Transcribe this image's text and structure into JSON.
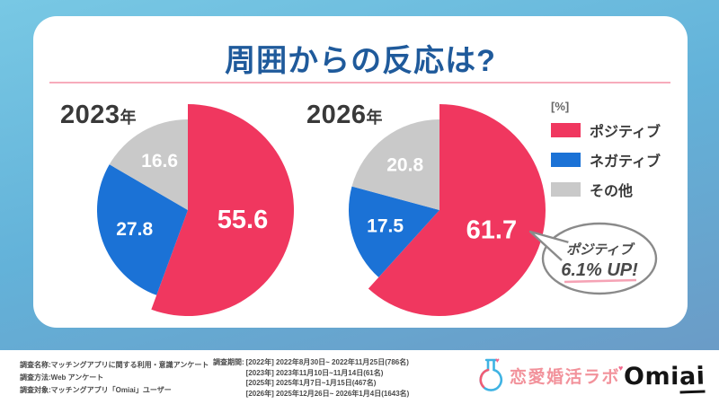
{
  "title": "周囲からの反応は?",
  "colors": {
    "positive": "#F0375F",
    "negative": "#1B72D6",
    "other": "#C9C9C9",
    "title_blue": "#1F5A9B",
    "divider_pink": "#F7ABBB",
    "callout_underline": "#F5A3B5"
  },
  "chart_data": [
    {
      "type": "pie",
      "title": "2023年",
      "year": "2023",
      "year_suffix": "年",
      "unit": "%",
      "categories": [
        "ポジティブ",
        "ネガティブ",
        "その他"
      ],
      "values": [
        55.6,
        27.8,
        16.6
      ],
      "colors": [
        "#F0375F",
        "#1B72D6",
        "#C9C9C9"
      ],
      "start_angle": "top",
      "direction": "clockwise",
      "labels_inside": true
    },
    {
      "type": "pie",
      "title": "2026年",
      "year": "2026",
      "year_suffix": "年",
      "unit": "%",
      "categories": [
        "ポジティブ",
        "ネガティブ",
        "その他"
      ],
      "values": [
        61.7,
        17.5,
        20.8
      ],
      "colors": [
        "#F0375F",
        "#1B72D6",
        "#C9C9C9"
      ],
      "start_angle": "top",
      "direction": "clockwise",
      "labels_inside": true
    }
  ],
  "legend": {
    "unit": "[%]",
    "items": [
      {
        "label": "ポジティブ",
        "color": "#F0375F"
      },
      {
        "label": "ネガティブ",
        "color": "#1B72D6"
      },
      {
        "label": "その他",
        "color": "#C9C9C9"
      }
    ]
  },
  "callout": {
    "line1": "ポジティブ",
    "line2": "6.1% UP!"
  },
  "footer": {
    "left_lines": [
      "調査名称:マッチングアプリに関する利用・意識アンケート",
      "調査方法:Web アンケート",
      "調査対象:マッチングアプリ「Omiai」ユーザー"
    ],
    "period_label": "調査期間:",
    "period_lines": [
      "[2022年] 2022年8月30日~ 2022年11月25日(786名)",
      "[2023年] 2023年11月10日~11月14日(61名)",
      "[2025年] 2025年1月7日~1月15日(467名)",
      "[2026年] 2025年12月26日~ 2026年1月4日(1643名)"
    ]
  },
  "logos": {
    "lab": {
      "text": "恋愛婚活ラボ",
      "heart": "♥"
    },
    "omiai": {
      "prefix": "Omi",
      "suffix": "ai"
    }
  }
}
